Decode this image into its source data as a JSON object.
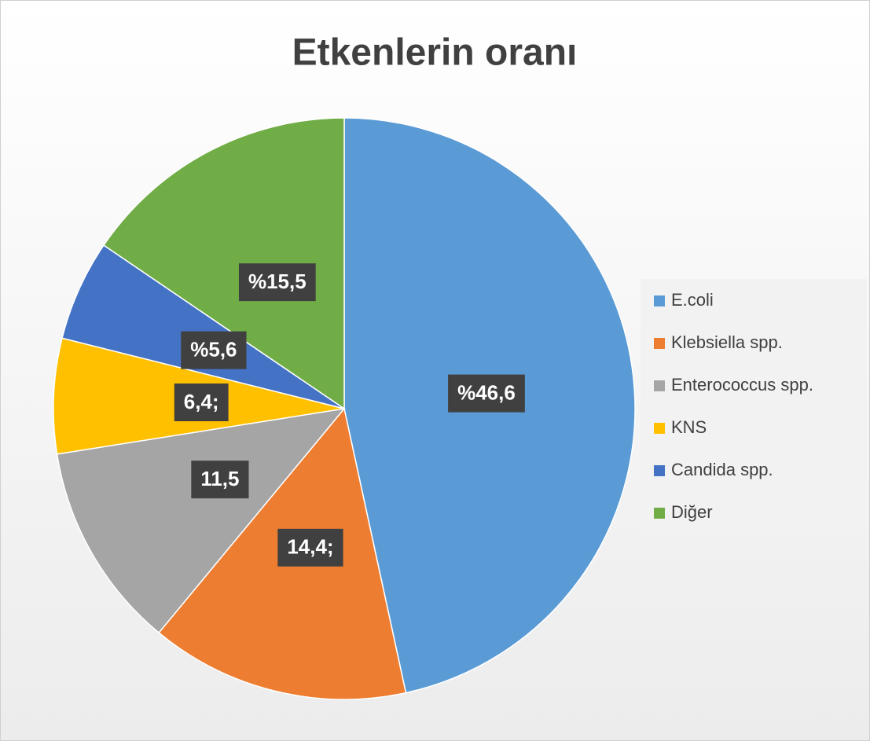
{
  "chart_data": {
    "type": "pie",
    "title": "Etkenlerin oranı",
    "categories": [
      "E.coli",
      "Klebsiella spp.",
      "Enterococcus spp.",
      "KNS",
      "Candida spp.",
      "Diğer"
    ],
    "values": [
      46.6,
      14.4,
      11.5,
      6.4,
      5.6,
      15.5
    ],
    "value_labels": [
      "%46,6",
      "14,4;",
      "11,5",
      "6,4;",
      "%5,6",
      "%15,5"
    ],
    "colors": [
      "#5b9bd5",
      "#ed7d31",
      "#a5a5a5",
      "#ffc000",
      "#4472c4",
      "#70ad47"
    ],
    "legend": "right"
  }
}
